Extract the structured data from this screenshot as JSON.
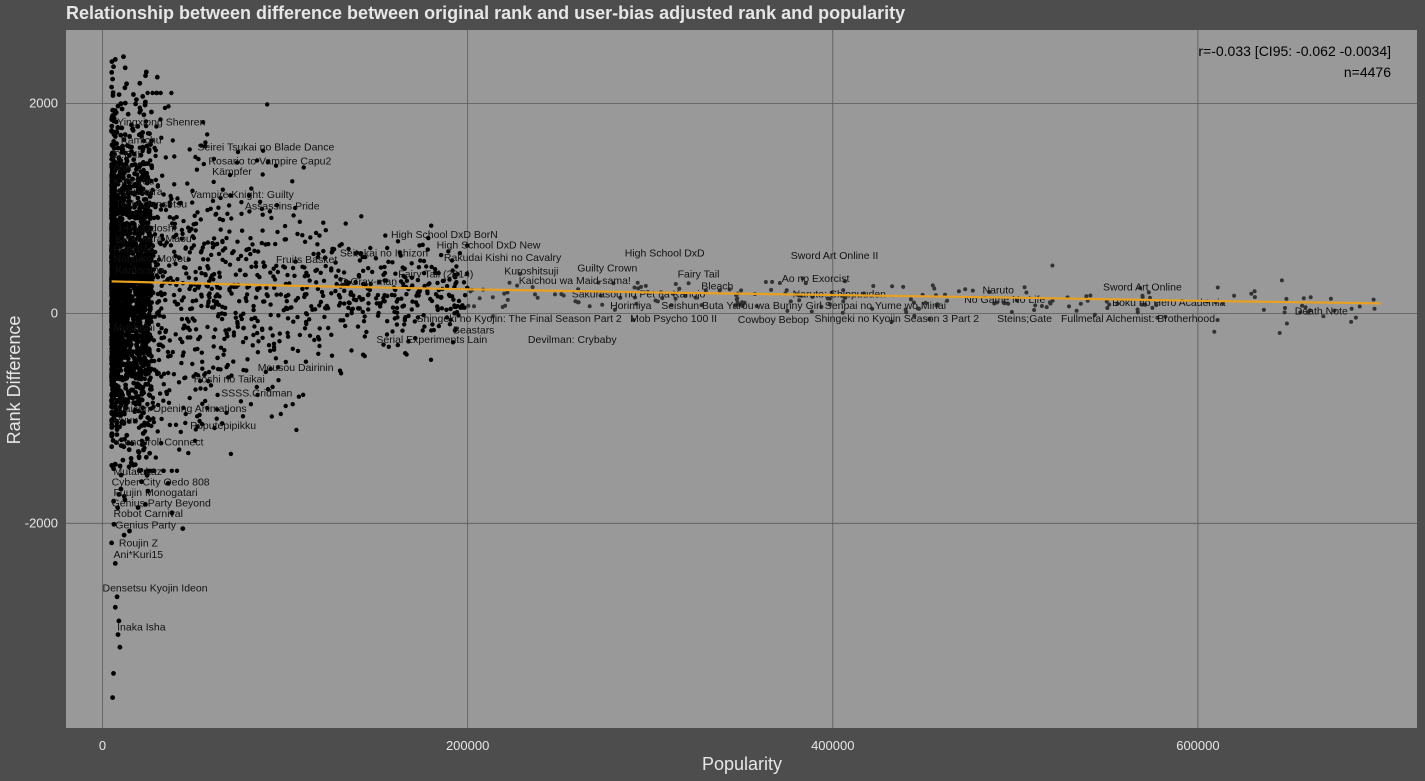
{
  "chart_data": {
    "type": "scatter",
    "title": "Relationship between difference between original rank and user-bias adjusted rank and popularity",
    "xlabel": "Popularity",
    "ylabel": "Rank Difference",
    "xlim": [
      -20000,
      720000
    ],
    "ylim": [
      -3950,
      2700
    ],
    "x_ticks": [
      0,
      200000,
      400000,
      600000
    ],
    "x_tick_labels": [
      "0",
      "200000",
      "400000",
      "600000"
    ],
    "y_ticks": [
      -2000,
      0,
      2000
    ],
    "y_tick_labels": [
      "-2000",
      "0",
      "2000"
    ],
    "grid": true,
    "annotation_lines": [
      "r=-0.033 [CI95: -0.062 -0.0034]",
      "n=4476"
    ],
    "trend_line": [
      [
        5000,
        305
      ],
      [
        100000,
        265
      ],
      [
        200000,
        230
      ],
      [
        300000,
        200
      ],
      [
        400000,
        175
      ],
      [
        500000,
        150
      ],
      [
        600000,
        120
      ],
      [
        700000,
        95
      ]
    ],
    "labeled_points": [
      {
        "label": "Yingxiong Shenren",
        "x": 8000,
        "y": 1790
      },
      {
        "label": "Kamichu",
        "x": 10000,
        "y": 1620
      },
      {
        "label": "D.C.II",
        "x": 6000,
        "y": 1480
      },
      {
        "label": "Asa",
        "x": 6000,
        "y": 1360
      },
      {
        "label": "Kyonyuu",
        "x": 6000,
        "y": 1230
      },
      {
        "label": "Kyou kara",
        "x": 7000,
        "y": 1130
      },
      {
        "label": "Toshi Densetsu",
        "x": 7000,
        "y": 1010
      },
      {
        "label": "Seirei Tsukai no Blade Dance",
        "x": 52000,
        "y": 1550
      },
      {
        "label": "Rosario to Vampire Capu2",
        "x": 58000,
        "y": 1420
      },
      {
        "label": "Kämpfer",
        "x": 60000,
        "y": 1320
      },
      {
        "label": "Vampire Knight: Guilty",
        "x": 48000,
        "y": 1100
      },
      {
        "label": "Assassins Pride",
        "x": 78000,
        "y": 990
      },
      {
        "label": "1-i ni Odoshi",
        "x": 8000,
        "y": 780
      },
      {
        "label": "Kyou kara Maou",
        "x": 7000,
        "y": 680
      },
      {
        "label": "Princess",
        "x": 6000,
        "y": 580
      },
      {
        "label": "Natsukoi Moyou",
        "x": 6000,
        "y": 490
      },
      {
        "label": "Kamisama",
        "x": 7000,
        "y": 380
      },
      {
        "label": "Fruits Basket",
        "x": 95000,
        "y": 480
      },
      {
        "label": "Seitokai no Ichizon",
        "x": 130000,
        "y": 540
      },
      {
        "label": "High School DxD BorN",
        "x": 158000,
        "y": 720
      },
      {
        "label": "High School DxD New",
        "x": 183000,
        "y": 620
      },
      {
        "label": "Rakudai Kishi no Cavalry",
        "x": 187000,
        "y": 500
      },
      {
        "label": "Kuroshitsuji",
        "x": 220000,
        "y": 370
      },
      {
        "label": "Fairy Tail (2014)",
        "x": 162000,
        "y": 340
      },
      {
        "label": "D.Gray-man",
        "x": 130000,
        "y": 270
      },
      {
        "label": "Kaichou wa Maid-sama!",
        "x": 228000,
        "y": 280
      },
      {
        "label": "Guilty Crown",
        "x": 260000,
        "y": 400
      },
      {
        "label": "High School DxD",
        "x": 286000,
        "y": 540
      },
      {
        "label": "Fairy Tail",
        "x": 315000,
        "y": 340
      },
      {
        "label": "Bleach",
        "x": 328000,
        "y": 230
      },
      {
        "label": "Sword Art Online II",
        "x": 377000,
        "y": 520
      },
      {
        "label": "Ao no Exorcist",
        "x": 372000,
        "y": 300
      },
      {
        "label": "Naruto: Shippuuden",
        "x": 378000,
        "y": 150
      },
      {
        "label": "Naruto",
        "x": 482000,
        "y": 190
      },
      {
        "label": "No Game No Life",
        "x": 472000,
        "y": 100
      },
      {
        "label": "Sword Art Online",
        "x": 548000,
        "y": 220
      },
      {
        "label": "Boku no Hero Academia",
        "x": 553000,
        "y": 70
      },
      {
        "label": "Sakurasou no Pet na Kanojo",
        "x": 257000,
        "y": 150
      },
      {
        "label": "Horimiya",
        "x": 278000,
        "y": 40
      },
      {
        "label": "Seishun Buta Yarou wa Bunny Girl Senpai no Yume wo Minai",
        "x": 306000,
        "y": 40
      },
      {
        "label": "Shingeki no Kyojin: The Final Season Part 2",
        "x": 172000,
        "y": -80
      },
      {
        "label": "Mob Psycho 100 II",
        "x": 289000,
        "y": -80
      },
      {
        "label": "Cowboy Bebop",
        "x": 348000,
        "y": -90
      },
      {
        "label": "Shingeki no Kyojin Season 3 Part 2",
        "x": 390000,
        "y": -80
      },
      {
        "label": "Steins;Gate",
        "x": 490000,
        "y": -80
      },
      {
        "label": "Fullmetal Alchemist: Brotherhood",
        "x": 525000,
        "y": -80
      },
      {
        "label": "Death Note",
        "x": 653000,
        "y": -10
      },
      {
        "label": "Beastars",
        "x": 192000,
        "y": -190
      },
      {
        "label": "Serial Experiments Lain",
        "x": 150000,
        "y": -280
      },
      {
        "label": "Devilman: Crybaby",
        "x": 233000,
        "y": -280
      },
      {
        "label": "Mushishi",
        "x": 6000,
        "y": -170
      },
      {
        "label": "Mousou Dairinin",
        "x": 85000,
        "y": -550
      },
      {
        "label": "Hoshi no Taikai",
        "x": 50000,
        "y": -660
      },
      {
        "label": "SSSS.Gridman",
        "x": 65000,
        "y": -790
      },
      {
        "label": "Daicon Opening Animations",
        "x": 8000,
        "y": -940
      },
      {
        "label": "Ryuu",
        "x": 6000,
        "y": -1050
      },
      {
        "label": "Poputepipikku",
        "x": 48000,
        "y": -1100
      },
      {
        "label": "Cencoroll Connect",
        "x": 8000,
        "y": -1260
      },
      {
        "label": "Mutafukaz",
        "x": 6000,
        "y": -1540
      },
      {
        "label": "Cyber City Oedo 808",
        "x": 5000,
        "y": -1640
      },
      {
        "label": "Fuujin Monogatari",
        "x": 6000,
        "y": -1740
      },
      {
        "label": "Genius Party Beyond",
        "x": 5000,
        "y": -1840
      },
      {
        "label": "Robot Carnival",
        "x": 6000,
        "y": -1940
      },
      {
        "label": "Genius Party",
        "x": 7000,
        "y": -2050
      },
      {
        "label": "Roujin Z",
        "x": 9000,
        "y": -2220
      },
      {
        "label": "Ani*Kuri15",
        "x": 6000,
        "y": -2330
      },
      {
        "label": "Densetsu Kyojin Ideon",
        "x": 0,
        "y": -2650
      },
      {
        "label": "Inaka Isha",
        "x": 8000,
        "y": -3020
      }
    ]
  }
}
